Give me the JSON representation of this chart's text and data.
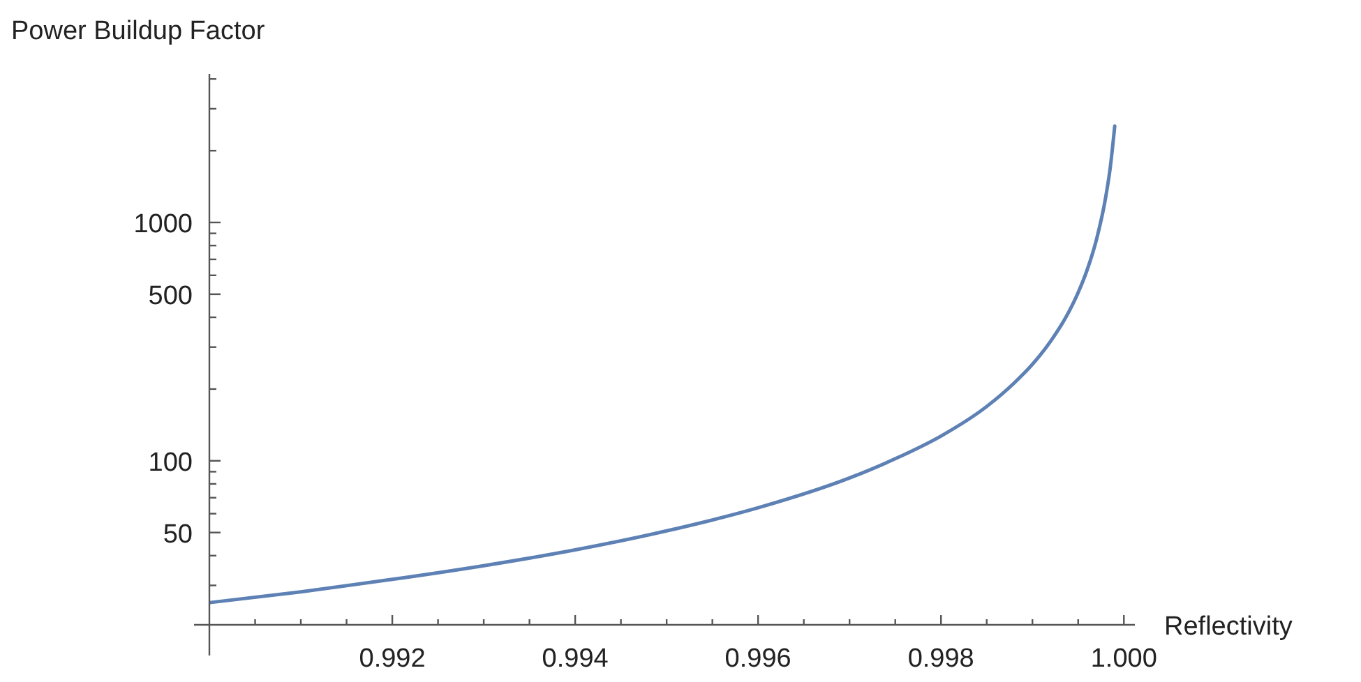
{
  "chart_data": {
    "type": "line",
    "xlabel": "Reflectivity",
    "ylabel": "Power Buildup Factor",
    "log": "y",
    "grid": false,
    "line_style": "solid",
    "xlim": [
      0.99,
      1.00012
    ],
    "ylim": [
      20.5,
      4200
    ],
    "xticks": [
      {
        "value": 0.9905,
        "label": null
      },
      {
        "value": 0.991,
        "label": null
      },
      {
        "value": 0.9915,
        "label": null
      },
      {
        "value": 0.992,
        "label": "0.992"
      },
      {
        "value": 0.9925,
        "label": null
      },
      {
        "value": 0.993,
        "label": null
      },
      {
        "value": 0.9935,
        "label": null
      },
      {
        "value": 0.994,
        "label": "0.994"
      },
      {
        "value": 0.9945,
        "label": null
      },
      {
        "value": 0.995,
        "label": null
      },
      {
        "value": 0.9955,
        "label": null
      },
      {
        "value": 0.996,
        "label": "0.996"
      },
      {
        "value": 0.9965,
        "label": null
      },
      {
        "value": 0.997,
        "label": null
      },
      {
        "value": 0.9975,
        "label": null
      },
      {
        "value": 0.998,
        "label": "0.998"
      },
      {
        "value": 0.9985,
        "label": null
      },
      {
        "value": 0.999,
        "label": null
      },
      {
        "value": 0.9995,
        "label": null
      },
      {
        "value": 1.0,
        "label": "1.000"
      }
    ],
    "yticks": [
      {
        "value": 30,
        "label": null
      },
      {
        "value": 40,
        "label": null
      },
      50,
      {
        "value": 60,
        "label": null
      },
      {
        "value": 70,
        "label": null
      },
      {
        "value": 80,
        "label": null
      },
      {
        "value": 90,
        "label": null
      },
      100,
      {
        "value": 200,
        "label": null
      },
      {
        "value": 300,
        "label": null
      },
      {
        "value": 400,
        "label": null
      },
      500,
      {
        "value": 600,
        "label": null
      },
      {
        "value": 700,
        "label": null
      },
      {
        "value": 800,
        "label": null
      },
      {
        "value": 900,
        "label": null
      },
      1000,
      {
        "value": 2000,
        "label": null
      },
      {
        "value": 3000,
        "label": null
      },
      {
        "value": 4000,
        "label": null
      }
    ],
    "x": [
      0.99,
      0.991,
      0.992,
      0.993,
      0.994,
      0.995,
      0.996,
      0.997,
      0.9975,
      0.998,
      0.9985,
      0.9988,
      0.999,
      0.9992,
      0.9994,
      0.9995,
      0.9996,
      0.9997,
      0.9998,
      0.99985,
      0.9999
    ],
    "series": [
      {
        "color": "#5e81b5",
        "values": [
          25.4,
          28.2,
          31.8,
          36.3,
          42.3,
          50.8,
          63.5,
          84.7,
          102,
          127,
          169,
          212,
          254,
          318,
          423,
          508,
          635,
          847,
          1270,
          1690,
          2540
        ]
      }
    ]
  }
}
